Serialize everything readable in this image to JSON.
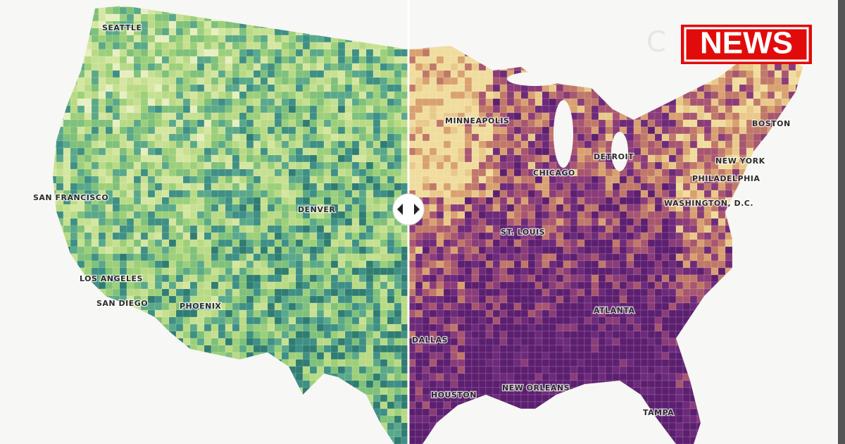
{
  "header": {
    "logo": "NEWS"
  },
  "map": {
    "labels": [
      "SEATTLE",
      "SAN FRANCISCO",
      "DENVER",
      "LOS ANGELES",
      "SAN DIEGO",
      "PHOENIX",
      "MINNEAPOLIS",
      "CHICAGO",
      "DETROIT",
      "BOSTON",
      "NEW YORK",
      "PHILADELPHIA",
      "WASHINGTON, D.C.",
      "ST. LOUIS",
      "ATLANTA",
      "DALLAS",
      "HOUSTON",
      "NEW ORLEANS",
      "TAMPA"
    ]
  }
}
